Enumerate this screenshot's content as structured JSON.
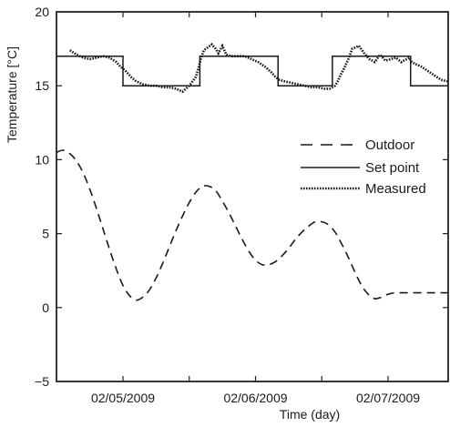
{
  "chart_data": {
    "type": "line",
    "title": "",
    "xlabel": "Time (day)",
    "ylabel": "Temperature [°C]",
    "ylim": [
      -5,
      20
    ],
    "xlim": [
      0,
      2.5
    ],
    "y_ticks": [
      -5,
      0,
      5,
      10,
      15,
      20
    ],
    "x_ticks": [
      {
        "x": 0,
        "label": "02/05/2009"
      },
      {
        "x": 1,
        "label": "02/06/2009"
      },
      {
        "x": 2,
        "label": "02/07/2009"
      }
    ],
    "x_minor_ticks": [
      0.5,
      1.5,
      2.5
    ],
    "legend_position": "right",
    "series": [
      {
        "name": "Outdoor",
        "style": "dashed",
        "x": [
          -0.5,
          -0.45,
          -0.4,
          -0.35,
          -0.3,
          -0.25,
          -0.2,
          -0.15,
          -0.1,
          -0.05,
          0,
          0.05,
          0.1,
          0.15,
          0.2,
          0.25,
          0.3,
          0.35,
          0.4,
          0.45,
          0.5,
          0.55,
          0.6,
          0.65,
          0.7,
          0.75,
          0.8,
          0.85,
          0.9,
          0.95,
          1,
          1.05,
          1.1,
          1.15,
          1.2,
          1.25,
          1.3,
          1.35,
          1.4,
          1.45,
          1.5,
          1.55,
          1.6,
          1.65,
          1.7,
          1.75,
          1.8,
          1.85,
          1.9,
          1.95,
          2,
          2.05,
          2.1,
          2.15,
          2.2,
          2.25,
          2.3,
          2.35,
          2.4,
          2.45,
          2.5
        ],
        "values": [
          10.5,
          10.64,
          10.4,
          9.9,
          9.1,
          8.0,
          6.7,
          5.3,
          3.9,
          2.6,
          1.5,
          0.8,
          0.5,
          0.7,
          1.2,
          2.0,
          3.0,
          4.1,
          5.2,
          6.2,
          7.1,
          7.8,
          8.2,
          8.2,
          7.9,
          7.2,
          6.4,
          5.5,
          4.6,
          3.8,
          3.2,
          2.9,
          2.9,
          3.1,
          3.5,
          4.0,
          4.6,
          5.1,
          5.5,
          5.8,
          5.8,
          5.6,
          5.1,
          4.3,
          3.4,
          2.4,
          1.5,
          0.9,
          0.6,
          0.7,
          0.9,
          1.0,
          1.0,
          1.0,
          1.0,
          1.0,
          1.0,
          1.0,
          1.0,
          1.0,
          1.0
        ]
      },
      {
        "name": "Set point",
        "style": "solid",
        "x": [
          -0.5,
          0,
          0,
          0.58,
          0.58,
          1.17,
          1.17,
          1.58,
          1.58,
          2.17,
          2.17,
          2.5
        ],
        "values": [
          17,
          17,
          15,
          15,
          17,
          17,
          15,
          15,
          17,
          17,
          15,
          15
        ]
      },
      {
        "name": "Measured",
        "style": "dotted",
        "x": [
          -0.4,
          -0.35,
          -0.3,
          -0.25,
          -0.2,
          -0.15,
          -0.1,
          -0.05,
          -0.02,
          0.02,
          0.06,
          0.1,
          0.15,
          0.2,
          0.25,
          0.3,
          0.35,
          0.4,
          0.45,
          0.5,
          0.55,
          0.57,
          0.59,
          0.61,
          0.64,
          0.67,
          0.7,
          0.72,
          0.75,
          0.78,
          0.82,
          0.87,
          0.92,
          0.97,
          1.02,
          1.07,
          1.12,
          1.15,
          1.18,
          1.22,
          1.27,
          1.32,
          1.37,
          1.42,
          1.47,
          1.52,
          1.56,
          1.58,
          1.6,
          1.62,
          1.64,
          1.67,
          1.7,
          1.73,
          1.78,
          1.82,
          1.86,
          1.9,
          1.94,
          1.98,
          2.02,
          2.06,
          2.1,
          2.14,
          2.16,
          2.18,
          2.2,
          2.25,
          2.3,
          2.35,
          2.4,
          2.45,
          2.5
        ],
        "values": [
          17.4,
          17.1,
          16.9,
          16.8,
          16.9,
          17.0,
          16.9,
          16.6,
          16.3,
          16.0,
          15.6,
          15.3,
          15.1,
          15.0,
          15.0,
          14.9,
          14.9,
          14.8,
          14.6,
          15.0,
          15.6,
          16.2,
          16.9,
          17.4,
          17.6,
          17.8,
          17.5,
          17.2,
          17.7,
          17.1,
          17.0,
          17.0,
          17.0,
          16.8,
          16.6,
          16.3,
          15.9,
          15.6,
          15.4,
          15.3,
          15.2,
          15.1,
          15.0,
          14.9,
          14.9,
          14.8,
          14.8,
          14.9,
          15.0,
          15.3,
          15.7,
          16.2,
          16.8,
          17.5,
          17.7,
          17.2,
          16.8,
          16.6,
          17.1,
          16.7,
          16.8,
          16.9,
          16.6,
          16.8,
          16.9,
          16.6,
          16.5,
          16.3,
          16.0,
          15.7,
          15.4,
          15.3,
          15.2
        ]
      }
    ]
  }
}
